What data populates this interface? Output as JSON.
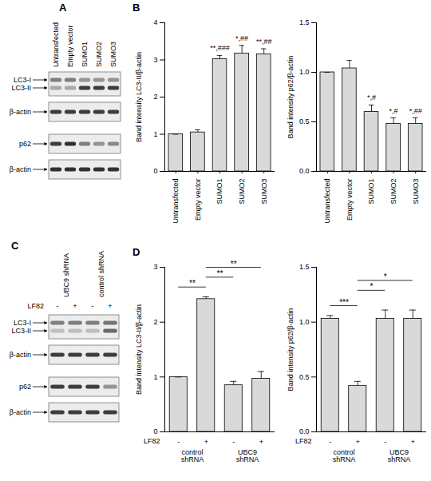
{
  "chart_data": [
    {
      "type": "bar",
      "panel_label": "B",
      "ylabel": "Band intensity LC3-II/β-actin",
      "categories": [
        "Untransfected",
        "Empty vector",
        "SUMO1",
        "SUMO2",
        "SUMO3"
      ],
      "values": [
        1.0,
        1.05,
        3.02,
        3.17,
        3.15
      ],
      "errors": [
        0,
        0.07,
        0.1,
        0.22,
        0.15
      ],
      "annotations": [
        null,
        null,
        "**,###",
        "*,##",
        "**,##"
      ],
      "ylim": [
        0,
        4
      ],
      "yticks": [
        0,
        1,
        2,
        3,
        4
      ],
      "color": "#d9d9d9",
      "grid": false
    },
    {
      "type": "bar",
      "ylabel": "Band intensity p62/β-actin",
      "categories": [
        "Untransfected",
        "Empty vector",
        "SUMO1",
        "SUMO2",
        "SUMO3"
      ],
      "values": [
        1.0,
        1.04,
        0.6,
        0.48,
        0.48
      ],
      "errors": [
        0,
        0.08,
        0.07,
        0.06,
        0.06
      ],
      "annotations": [
        null,
        null,
        "*,#",
        "*,#",
        "*,##"
      ],
      "ylim": [
        0,
        1.5
      ],
      "yticks": [
        {
          "value": 0,
          "label": "0.0"
        },
        {
          "value": 0.5,
          "label": "0.5"
        },
        {
          "value": 1,
          "label": "1.0"
        },
        {
          "value": 1.5,
          "label": "1.5"
        }
      ],
      "color": "#d9d9d9",
      "grid": false
    },
    {
      "type": "bar",
      "panel_label": "D",
      "ylabel": "Band intensity LC3-II/β-actin",
      "categories": [
        "-",
        "+",
        "-",
        "+"
      ],
      "category_row_label": "LF82",
      "group_labels": [
        "control shRNA",
        "UBC9 shRNA"
      ],
      "values": [
        1.0,
        2.42,
        0.85,
        0.97
      ],
      "errors": [
        0,
        0.04,
        0.07,
        0.13
      ],
      "comparisons": [
        {
          "from": 0,
          "to": 1,
          "label": "**"
        },
        {
          "from": 1,
          "to": 2,
          "label": "**"
        },
        {
          "from": 1,
          "to": 3,
          "label": "**"
        }
      ],
      "ylim": [
        0,
        3
      ],
      "yticks": [
        0,
        1,
        2,
        3
      ],
      "color": "#d9d9d9",
      "grid": false
    },
    {
      "type": "bar",
      "ylabel": "Band intensity p62/β-actin",
      "categories": [
        "-",
        "+",
        "-",
        "+"
      ],
      "category_row_label": "LF82",
      "group_labels": [
        "control shRNA",
        "UBC9 shRNA"
      ],
      "values": [
        1.03,
        0.42,
        1.03,
        1.03
      ],
      "errors": [
        0.03,
        0.04,
        0.08,
        0.08
      ],
      "comparisons": [
        {
          "from": 0,
          "to": 1,
          "label": "***"
        },
        {
          "from": 1,
          "to": 2,
          "label": "*"
        },
        {
          "from": 1,
          "to": 3,
          "label": "*"
        }
      ],
      "ylim": [
        0,
        1.5
      ],
      "yticks": [
        {
          "value": 0,
          "label": "0.0"
        },
        {
          "value": 0.5,
          "label": "0.5"
        },
        {
          "value": 1,
          "label": "1.0"
        },
        {
          "value": 1.5,
          "label": "1.5"
        }
      ],
      "color": "#d9d9d9",
      "grid": false
    }
  ],
  "blots": [
    {
      "panel_label": "A",
      "lanes": [
        "Untransfected",
        "Empty vector",
        "SUMO1",
        "SUMO2",
        "SUMO3"
      ],
      "membranes": [
        {
          "bands": [
            {
              "label": "LC3-I",
              "intensity": [
                0.5,
                0.5,
                0.4,
                0.4,
                0.4
              ]
            },
            {
              "label": "LC3-II",
              "intensity": [
                0.3,
                0.3,
                0.8,
                0.8,
                0.8
              ]
            }
          ]
        },
        {
          "bands": [
            {
              "label": "β-actin",
              "intensity": [
                0.8,
                0.8,
                0.8,
                0.8,
                0.8
              ]
            }
          ]
        },
        {
          "bands": [
            {
              "label": "p62",
              "intensity": [
                0.8,
                0.85,
                0.5,
                0.4,
                0.45
              ]
            }
          ]
        },
        {
          "bands": [
            {
              "label": "β-actin",
              "intensity": [
                0.85,
                0.85,
                0.85,
                0.85,
                0.85
              ]
            }
          ]
        }
      ]
    },
    {
      "panel_label": "C",
      "lane_groups": [
        "UBC9 shRNA",
        "control shRNA"
      ],
      "treatment_label": "LF82",
      "treatment": [
        "-",
        "+",
        "-",
        "+"
      ],
      "membranes": [
        {
          "bands": [
            {
              "label": "LC3-I",
              "intensity": [
                0.5,
                0.5,
                0.5,
                0.55
              ]
            },
            {
              "label": "LC3-II",
              "intensity": [
                0.2,
                0.2,
                0.2,
                0.6
              ]
            }
          ]
        },
        {
          "bands": [
            {
              "label": "β-actin",
              "intensity": [
                0.8,
                0.8,
                0.8,
                0.8
              ]
            }
          ]
        },
        {
          "bands": [
            {
              "label": "p62",
              "intensity": [
                0.8,
                0.8,
                0.8,
                0.4
              ]
            }
          ]
        },
        {
          "bands": [
            {
              "label": "β-actin",
              "intensity": [
                0.8,
                0.8,
                0.8,
                0.8
              ]
            }
          ]
        }
      ]
    }
  ]
}
